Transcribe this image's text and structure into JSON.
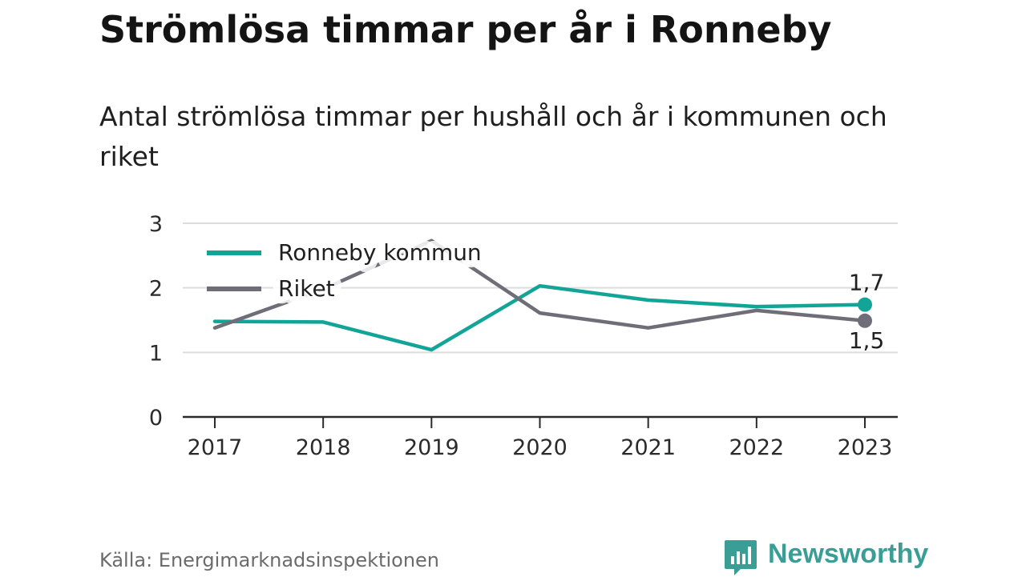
{
  "header": {
    "title": "Strömlösa timmar per år i Ronneby",
    "subtitle": "Antal strömlösa timmar per hushåll och år i kommunen och riket"
  },
  "chart_data": {
    "type": "line",
    "x": [
      "2017",
      "2018",
      "2019",
      "2020",
      "2021",
      "2022",
      "2023"
    ],
    "yticks": [
      "0",
      "1",
      "2",
      "3"
    ],
    "ylim": [
      0,
      3
    ],
    "grid": true,
    "legend_position": "top-left",
    "series": [
      {
        "name": "Ronneby kommun",
        "color": "#12a597",
        "values": [
          1.48,
          1.47,
          1.04,
          2.03,
          1.81,
          1.71,
          1.74
        ],
        "end_label": "1,7"
      },
      {
        "name": "Riket",
        "color": "#6f6e78",
        "values": [
          1.38,
          1.98,
          2.73,
          1.61,
          1.38,
          1.65,
          1.49
        ],
        "end_label": "1,5"
      }
    ]
  },
  "footer": {
    "source": "Källa: Energimarknadsinspektionen",
    "brand": "Newsworthy",
    "brand_color": "#3a9e96"
  }
}
